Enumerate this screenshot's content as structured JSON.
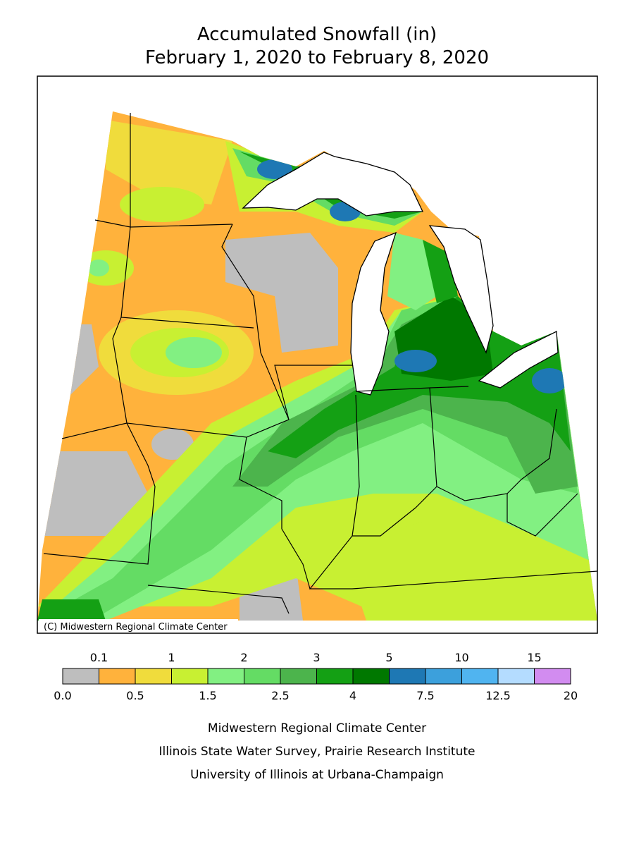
{
  "title": [
    "Accumulated Snowfall (in)",
    "February 1, 2020 to February 8, 2020"
  ],
  "copyright": "(C) Midwestern Regional Climate Center",
  "legend": {
    "bins": [
      {
        "value": 0,
        "label": "0.0"
      },
      0.1,
      0.5,
      1,
      1.5,
      2,
      2.5,
      3,
      4,
      5,
      7.5,
      10,
      12.5,
      15,
      20
    ],
    "colors": [
      "#bebebe",
      "#ffb23c",
      "#f0dc3c",
      "#c8f032",
      "#82f082",
      "#64dc64",
      "#4cb44c",
      "#14a014",
      "#007800",
      "#1e78b4",
      "#3ca0dc",
      "#50b4f0",
      "#b4dcff",
      "#d28cf0"
    ]
  },
  "credits": [
    "Midwestern Regional Climate Center",
    "Illinois State Water Survey, Prairie Research Institute",
    "University of Illinois at Urbana-Champaign"
  ]
}
